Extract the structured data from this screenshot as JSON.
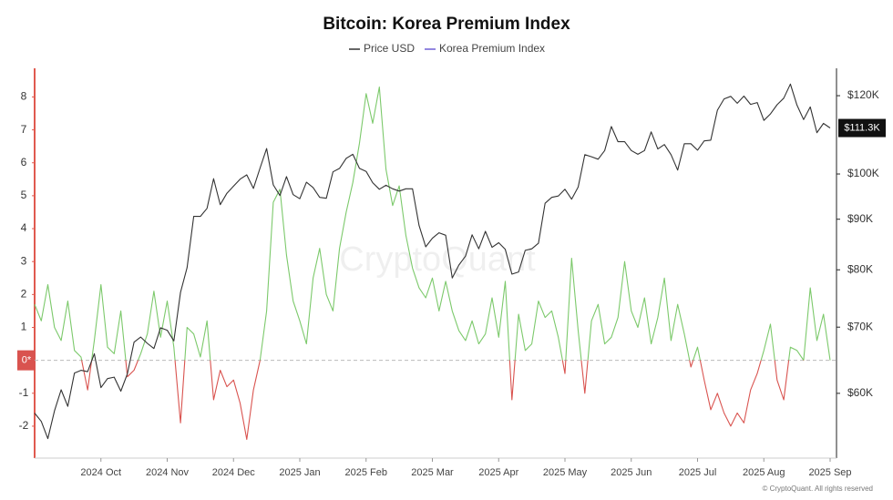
{
  "chart_data": {
    "type": "line",
    "title": "Bitcoin: Korea Premium Index",
    "watermark": "CryptoQuant",
    "footer": "© CryptoQuant. All rights reserved",
    "categories": [
      null,
      null,
      null,
      null,
      null,
      null,
      null,
      null,
      null,
      null,
      "2024 Oct",
      null,
      null,
      null,
      null,
      null,
      null,
      null,
      null,
      null,
      "2024 Nov",
      null,
      null,
      null,
      null,
      null,
      null,
      null,
      null,
      null,
      "2024 Dec",
      null,
      null,
      null,
      null,
      null,
      null,
      null,
      null,
      null,
      "2025 Jan",
      null,
      null,
      null,
      null,
      null,
      null,
      null,
      null,
      null,
      "2025 Feb",
      null,
      null,
      null,
      null,
      null,
      null,
      null,
      null,
      null,
      "2025 Mar",
      null,
      null,
      null,
      null,
      null,
      null,
      null,
      null,
      null,
      "2025 Apr",
      null,
      null,
      null,
      null,
      null,
      null,
      null,
      null,
      null,
      "2025 May",
      null,
      null,
      null,
      null,
      null,
      null,
      null,
      null,
      null,
      "2025 Jun",
      null,
      null,
      null,
      null,
      null,
      null,
      null,
      null,
      null,
      "2025 Jul",
      null,
      null,
      null,
      null,
      null,
      null,
      null,
      null,
      null,
      "2025 Aug",
      null,
      null,
      null,
      null,
      null,
      null,
      null,
      null,
      null,
      "2025 Sep"
    ],
    "series": [
      {
        "name": "Price USD",
        "color": "#333333",
        "axis": "y2",
        "values": [
          57300,
          56200,
          54000,
          57600,
          60500,
          58200,
          62900,
          63300,
          63100,
          65800,
          60800,
          62100,
          62300,
          60300,
          62800,
          67600,
          68400,
          67400,
          66600,
          69900,
          69500,
          67800,
          75900,
          80400,
          90600,
          90600,
          92300,
          98900,
          93100,
          95600,
          97200,
          98800,
          99800,
          96700,
          101400,
          106100,
          97500,
          95100,
          99400,
          95300,
          94400,
          98100,
          96900,
          94700,
          94500,
          100500,
          101300,
          103700,
          104700,
          101300,
          100600,
          98000,
          96500,
          97400,
          96600,
          96100,
          96600,
          96600,
          88700,
          84400,
          86100,
          87200,
          86700,
          78500,
          80900,
          82600,
          86800,
          84000,
          87500,
          84300,
          85200,
          83900,
          79200,
          79600,
          83700,
          84000,
          85100,
          93400,
          94700,
          95000,
          96500,
          94300,
          97000,
          104600,
          104100,
          103500,
          105600,
          111700,
          107800,
          107800,
          105600,
          104700,
          105600,
          110300,
          106000,
          107100,
          104600,
          100900,
          107300,
          107300,
          105700,
          108000,
          108200,
          116000,
          119100,
          119800,
          117900,
          119900,
          117600,
          118100,
          113300,
          115000,
          117500,
          119300,
          123300,
          117400,
          113500,
          116900,
          110100,
          112500,
          111300
        ]
      },
      {
        "name": "Korea Premium Index",
        "color": "#6f5fd6",
        "positive_color": "#7cc96b",
        "negative_color": "#d9534f",
        "values": [
          1.7,
          1.2,
          2.3,
          1.0,
          0.6,
          1.8,
          0.3,
          0.1,
          -0.9,
          0.6,
          2.3,
          0.4,
          0.2,
          1.5,
          -0.5,
          -0.3,
          0.2,
          0.8,
          2.1,
          0.7,
          1.8,
          0.4,
          -1.9,
          1.0,
          0.8,
          0.1,
          1.2,
          -1.2,
          -0.3,
          -0.8,
          -0.6,
          -1.3,
          -2.4,
          -0.9,
          0.0,
          1.5,
          4.8,
          5.2,
          3.2,
          1.8,
          1.2,
          0.5,
          2.5,
          3.4,
          2.0,
          1.5,
          3.4,
          4.5,
          5.4,
          6.6,
          8.1,
          7.2,
          8.3,
          5.8,
          4.7,
          5.3,
          3.8,
          2.8,
          2.2,
          1.9,
          2.5,
          1.5,
          2.4,
          1.5,
          0.9,
          0.6,
          1.2,
          0.5,
          0.8,
          1.9,
          0.7,
          2.4,
          -1.2,
          1.4,
          0.3,
          0.5,
          1.8,
          1.3,
          1.5,
          0.7,
          -0.4,
          3.1,
          0.9,
          -1.0,
          1.2,
          1.7,
          0.5,
          0.7,
          1.3,
          3.0,
          1.5,
          1.0,
          1.9,
          0.5,
          1.3,
          2.5,
          0.6,
          1.7,
          0.8,
          -0.2,
          0.4,
          -0.6,
          -1.5,
          -1.0,
          -1.6,
          -2.0,
          -1.6,
          -1.9,
          -0.9,
          -0.4,
          0.3,
          1.1,
          -0.6,
          -1.2,
          0.4,
          0.3,
          0.0,
          2.2,
          0.6,
          1.4,
          0.0
        ]
      }
    ],
    "price_marker": {
      "value": 111300,
      "label": "$111.3K"
    },
    "ylim": [
      -2.97,
      8.87
    ],
    "yticks": [
      -2,
      -1,
      {
        "value": 0,
        "label": "0*"
      },
      1,
      2,
      3,
      4,
      5,
      6,
      7,
      8
    ],
    "y2lim": [
      51600,
      127900
    ],
    "y2_log": true,
    "y2ticks": [
      {
        "value": 60000,
        "label": "$60K"
      },
      {
        "value": 70000,
        "label": "$70K"
      },
      {
        "value": 80000,
        "label": "$80K"
      },
      {
        "value": 90000,
        "label": "$90K"
      },
      {
        "value": 100000,
        "label": "$100K"
      },
      {
        "value": 120000,
        "label": "$120K"
      }
    ],
    "zero_line": true
  }
}
